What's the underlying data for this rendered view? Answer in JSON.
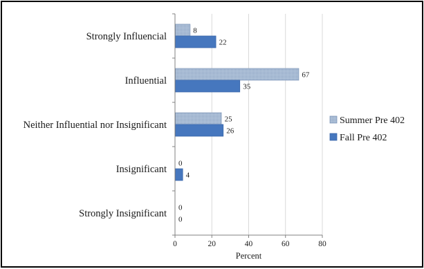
{
  "chart_data": {
    "type": "bar",
    "orientation": "horizontal",
    "title": "",
    "xlabel": "Percent",
    "ylabel": "",
    "xlim": [
      0,
      80
    ],
    "xticks": [
      0,
      20,
      40,
      60,
      80
    ],
    "grid": true,
    "legend_position": "right",
    "categories": [
      "Strongly Influencial",
      "Influential",
      "Neither Influential nor Insignificant",
      "Insignificant",
      "Strongly Insignificant"
    ],
    "series": [
      {
        "name": "Summer Pre 402",
        "values": [
          8,
          67,
          25,
          0,
          0
        ],
        "color": "#9fb5d0",
        "pattern": "dotted"
      },
      {
        "name": "Fall Pre 402",
        "values": [
          22,
          35,
          26,
          4,
          0
        ],
        "color": "#4677be",
        "pattern": "solid"
      }
    ]
  }
}
